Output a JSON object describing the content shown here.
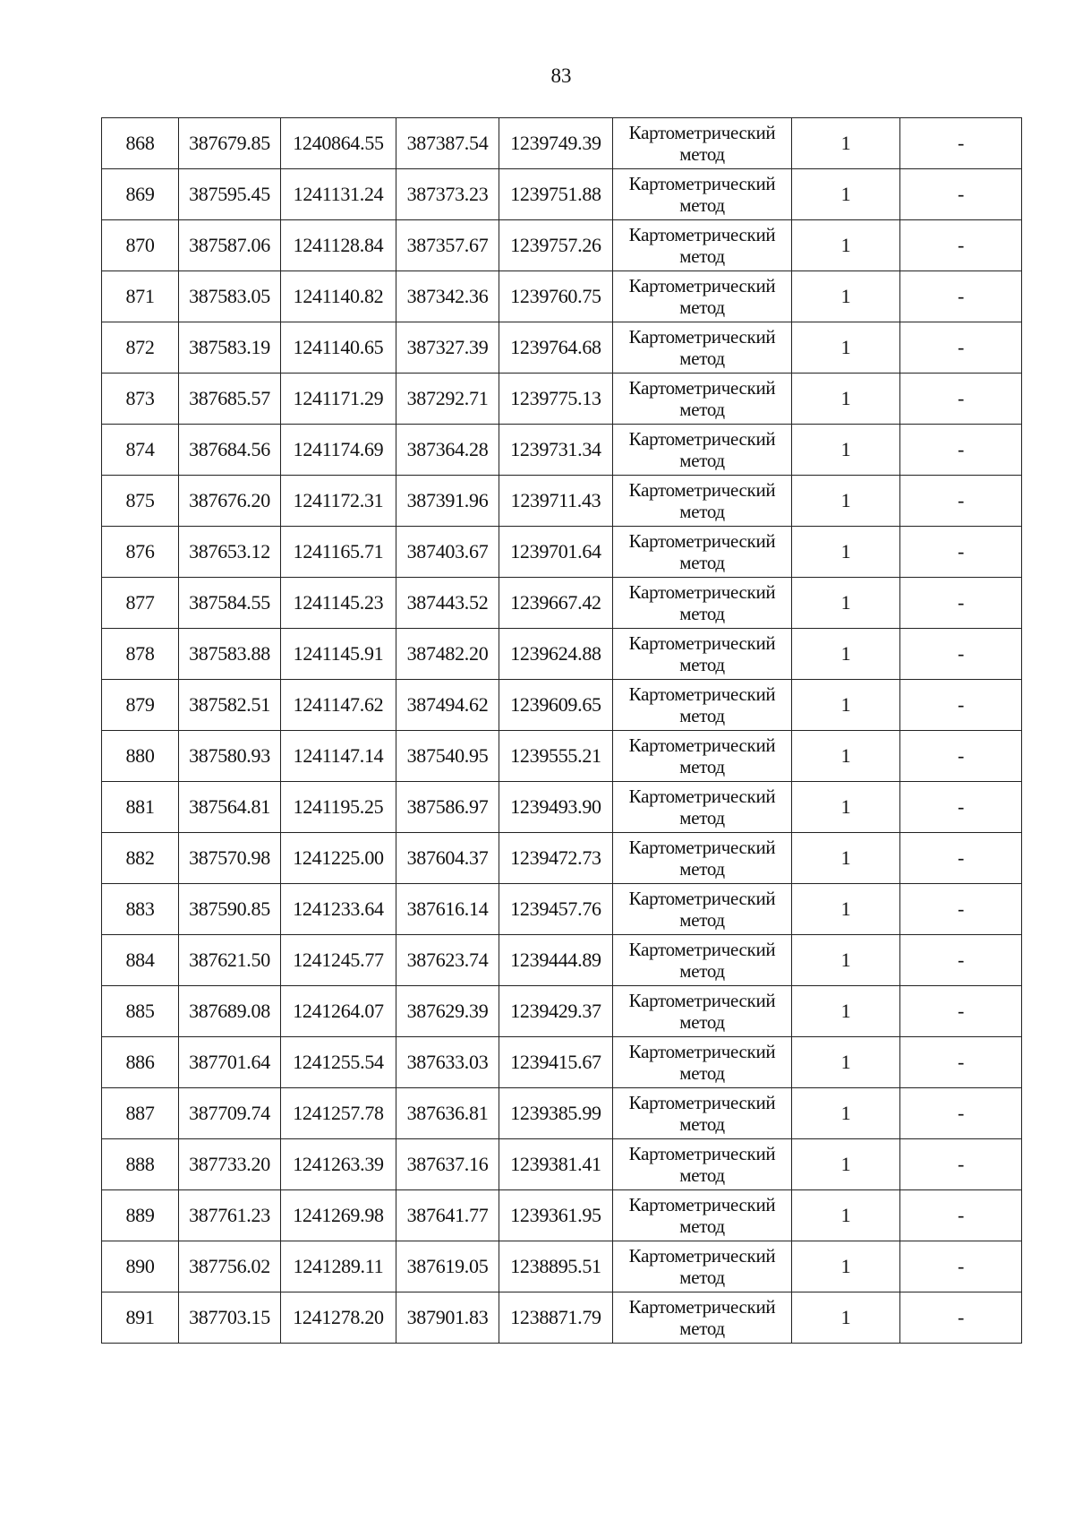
{
  "page_number": "83",
  "method_line1": "Картометрический",
  "method_line2": "метод",
  "rows": [
    [
      "868",
      "387679.85",
      "1240864.55",
      "387387.54",
      "1239749.39",
      "1",
      "-"
    ],
    [
      "869",
      "387595.45",
      "1241131.24",
      "387373.23",
      "1239751.88",
      "1",
      "-"
    ],
    [
      "870",
      "387587.06",
      "1241128.84",
      "387357.67",
      "1239757.26",
      "1",
      "-"
    ],
    [
      "871",
      "387583.05",
      "1241140.82",
      "387342.36",
      "1239760.75",
      "1",
      "-"
    ],
    [
      "872",
      "387583.19",
      "1241140.65",
      "387327.39",
      "1239764.68",
      "1",
      "-"
    ],
    [
      "873",
      "387685.57",
      "1241171.29",
      "387292.71",
      "1239775.13",
      "1",
      "-"
    ],
    [
      "874",
      "387684.56",
      "1241174.69",
      "387364.28",
      "1239731.34",
      "1",
      "-"
    ],
    [
      "875",
      "387676.20",
      "1241172.31",
      "387391.96",
      "1239711.43",
      "1",
      "-"
    ],
    [
      "876",
      "387653.12",
      "1241165.71",
      "387403.67",
      "1239701.64",
      "1",
      "-"
    ],
    [
      "877",
      "387584.55",
      "1241145.23",
      "387443.52",
      "1239667.42",
      "1",
      "-"
    ],
    [
      "878",
      "387583.88",
      "1241145.91",
      "387482.20",
      "1239624.88",
      "1",
      "-"
    ],
    [
      "879",
      "387582.51",
      "1241147.62",
      "387494.62",
      "1239609.65",
      "1",
      "-"
    ],
    [
      "880",
      "387580.93",
      "1241147.14",
      "387540.95",
      "1239555.21",
      "1",
      "-"
    ],
    [
      "881",
      "387564.81",
      "1241195.25",
      "387586.97",
      "1239493.90",
      "1",
      "-"
    ],
    [
      "882",
      "387570.98",
      "1241225.00",
      "387604.37",
      "1239472.73",
      "1",
      "-"
    ],
    [
      "883",
      "387590.85",
      "1241233.64",
      "387616.14",
      "1239457.76",
      "1",
      "-"
    ],
    [
      "884",
      "387621.50",
      "1241245.77",
      "387623.74",
      "1239444.89",
      "1",
      "-"
    ],
    [
      "885",
      "387689.08",
      "1241264.07",
      "387629.39",
      "1239429.37",
      "1",
      "-"
    ],
    [
      "886",
      "387701.64",
      "1241255.54",
      "387633.03",
      "1239415.67",
      "1",
      "-"
    ],
    [
      "887",
      "387709.74",
      "1241257.78",
      "387636.81",
      "1239385.99",
      "1",
      "-"
    ],
    [
      "888",
      "387733.20",
      "1241263.39",
      "387637.16",
      "1239381.41",
      "1",
      "-"
    ],
    [
      "889",
      "387761.23",
      "1241269.98",
      "387641.77",
      "1239361.95",
      "1",
      "-"
    ],
    [
      "890",
      "387756.02",
      "1241289.11",
      "387619.05",
      "1238895.51",
      "1",
      "-"
    ],
    [
      "891",
      "387703.15",
      "1241278.20",
      "387901.83",
      "1238871.79",
      "1",
      "-"
    ]
  ]
}
